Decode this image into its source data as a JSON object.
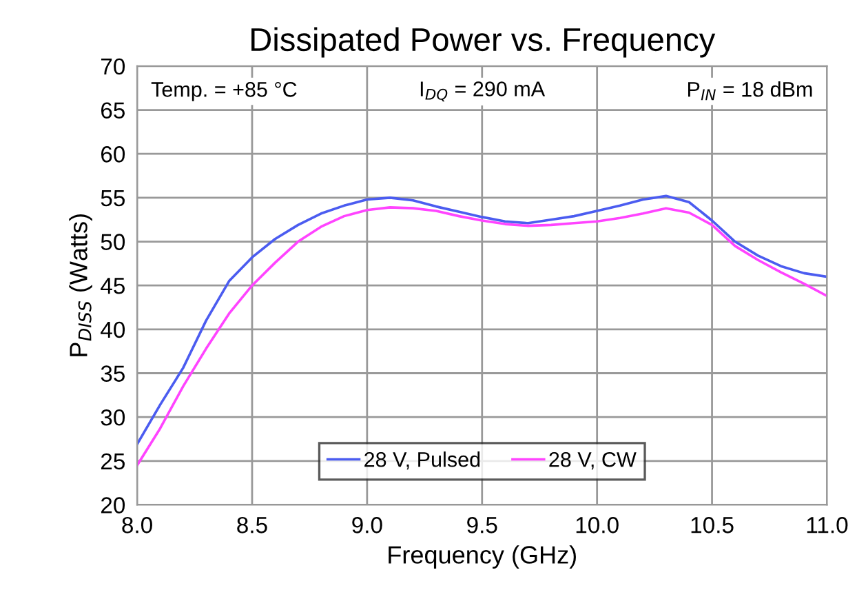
{
  "chart_data": {
    "type": "line",
    "title": "Dissipated Power vs. Frequency",
    "xlabel": "Frequency (GHz)",
    "ylabel": "P$_{DISS}$ (Watts)",
    "annotations": [
      "Temp. = +85 °C",
      "I$_{DQ}$ = 290 mA",
      "P$_{IN}$ = 18 dBm"
    ],
    "x": [
      8.0,
      8.1,
      8.2,
      8.3,
      8.4,
      8.5,
      8.6,
      8.7,
      8.8,
      8.9,
      9.0,
      9.1,
      9.2,
      9.3,
      9.4,
      9.5,
      9.6,
      9.7,
      9.8,
      9.9,
      10.0,
      10.1,
      10.2,
      10.3,
      10.4,
      10.5,
      10.6,
      10.7,
      10.8,
      10.9,
      11.0
    ],
    "series": [
      {
        "name": "28 V, Pulsed",
        "color": "#4b5cf0",
        "values": [
          26.9,
          31.4,
          35.6,
          41,
          45.5,
          48.2,
          50.3,
          51.9,
          53.2,
          54.1,
          54.8,
          55,
          54.7,
          54,
          53.4,
          52.8,
          52.3,
          52.1,
          52.5,
          52.9,
          53.5,
          54.1,
          54.8,
          55.2,
          54.5,
          52.4,
          50,
          48.4,
          47.2,
          46.4,
          46
        ]
      },
      {
        "name": "28 V, CW",
        "color": "#ff44ff",
        "values": [
          24.5,
          28.7,
          33.5,
          37.8,
          41.8,
          45,
          47.6,
          50,
          51.7,
          52.9,
          53.6,
          53.9,
          53.8,
          53.5,
          52.9,
          52.4,
          52,
          51.8,
          51.9,
          52.1,
          52.3,
          52.7,
          53.2,
          53.8,
          53.3,
          51.9,
          49.5,
          47.9,
          46.5,
          45.2,
          43.8
        ]
      }
    ],
    "xlim": [
      8.0,
      11.0
    ],
    "ylim": [
      20,
      70
    ],
    "xticks": [
      {
        "value": 8.0,
        "label": "8.0"
      },
      {
        "value": 8.5,
        "label": "8.5"
      },
      {
        "value": 9.0,
        "label": "9.0"
      },
      {
        "value": 9.5,
        "label": "9.5"
      },
      {
        "value": 10.0,
        "label": "10.0"
      },
      {
        "value": 10.5,
        "label": "10.5"
      },
      {
        "value": 11.0,
        "label": "11.0"
      }
    ],
    "yticks": [
      20,
      25,
      30,
      35,
      40,
      45,
      50,
      55,
      60,
      65,
      70
    ],
    "grid": true,
    "legend": "bottom",
    "marker": "none",
    "line_style": "solid"
  }
}
